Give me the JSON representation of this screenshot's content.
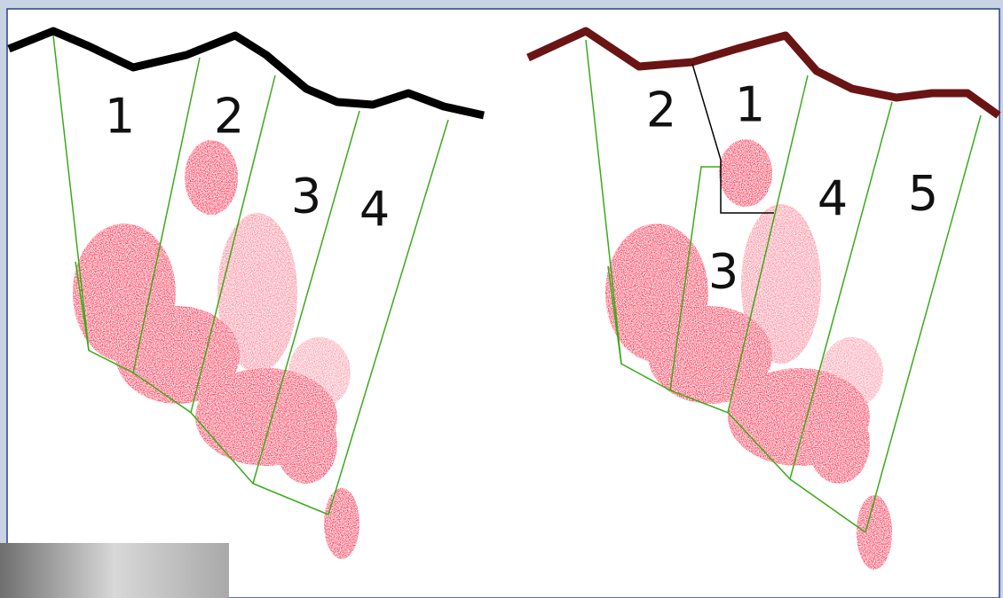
{
  "left_panel": {
    "zones": [
      "1",
      "2",
      "3",
      "4"
    ]
  },
  "right_panel": {
    "zones": [
      "2",
      "1",
      "4",
      "5",
      "3"
    ]
  }
}
